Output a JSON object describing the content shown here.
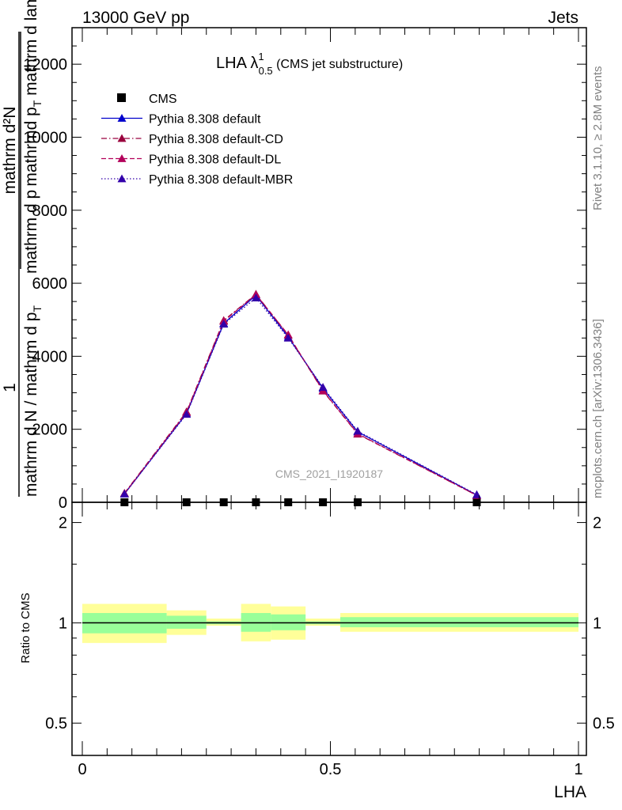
{
  "header": {
    "left": "13000 GeV pp",
    "right": "Jets"
  },
  "side_labels": {
    "rivet": "Rivet 3.1.10, ≥ 2.8M events",
    "mcplots": "mcplots.cern.ch [arXiv:1306.3436]"
  },
  "watermark": "CMS_2021_I1920187",
  "colors": {
    "cms": "#000000",
    "default": "#0000cc",
    "default_cd": "#99003d",
    "default_dl": "#b3005a",
    "default_mbr": "#3300aa",
    "band_yellow": "#ffff99",
    "band_green": "#99ff99"
  },
  "chart_data": [
    {
      "type": "line",
      "panel": "main",
      "title": {
        "prefix": "LHA λ",
        "sup": "1",
        "sub": "0.5",
        "suffix": " (CMS jet substructure)"
      },
      "ylabel": {
        "numerator": "mathrm d²N",
        "denominator": "mathrm d p mathrmd p",
        "subscript": "T",
        "denominator_tail": " mathrm d lambda",
        "outer_numerator": "1",
        "outer_denominator": "mathrm d N / mathrm d p",
        "outer_subscript": "T"
      },
      "xlim": [
        0,
        1
      ],
      "ylim": [
        0,
        13000
      ],
      "yticks": [
        0,
        2000,
        4000,
        6000,
        8000,
        10000,
        12000
      ],
      "ytick_labels": [
        "0",
        "2000",
        "4000",
        "6000",
        "8000",
        "10000",
        "12000"
      ],
      "grid": false,
      "legend_position": "top-left",
      "series": [
        {
          "name": "CMS",
          "marker": "square",
          "x": [
            0.085,
            0.21,
            0.285,
            0.35,
            0.415,
            0.485,
            0.555,
            0.795
          ],
          "y": [
            0,
            0,
            0,
            0,
            0,
            0,
            0,
            0
          ]
        },
        {
          "name": "Pythia 8.308 default",
          "marker": "triangle",
          "dash": "solid",
          "x": [
            0.085,
            0.21,
            0.285,
            0.35,
            0.415,
            0.485,
            0.555,
            0.795
          ],
          "y": [
            230,
            2430,
            4900,
            5670,
            4530,
            3120,
            1930,
            200
          ]
        },
        {
          "name": "Pythia 8.308 default-CD",
          "marker": "triangle",
          "dash": "dashdot",
          "x": [
            0.085,
            0.21,
            0.285,
            0.35,
            0.415,
            0.485,
            0.555,
            0.795
          ],
          "y": [
            250,
            2480,
            4980,
            5700,
            4580,
            3050,
            1870,
            190
          ]
        },
        {
          "name": "Pythia 8.308 default-DL",
          "marker": "triangle",
          "dash": "dashed",
          "x": [
            0.085,
            0.21,
            0.285,
            0.35,
            0.415,
            0.485,
            0.555,
            0.795
          ],
          "y": [
            240,
            2460,
            4960,
            5690,
            4590,
            3060,
            1880,
            190
          ]
        },
        {
          "name": "Pythia 8.308 default-MBR",
          "marker": "triangle",
          "dash": "dotted",
          "x": [
            0.085,
            0.21,
            0.285,
            0.35,
            0.415,
            0.485,
            0.555,
            0.795
          ],
          "y": [
            230,
            2410,
            4880,
            5600,
            4500,
            3150,
            1950,
            210
          ]
        }
      ]
    },
    {
      "type": "area",
      "panel": "ratio",
      "ylabel": "Ratio to CMS",
      "xlabel": "LHA",
      "xlim": [
        0,
        1
      ],
      "ylim": [
        0.4,
        2.3
      ],
      "ylog": true,
      "yticks": [
        0.5,
        1,
        2
      ],
      "ytick_labels": [
        "0.5",
        "1",
        "2"
      ],
      "xticks": [
        0,
        0.5,
        1
      ],
      "xtick_labels": [
        "0",
        "0.5",
        "1"
      ],
      "grid": false,
      "reference": 1,
      "bands": [
        {
          "x0": 0.0,
          "x1": 0.17,
          "yellow": [
            0.87,
            1.14
          ],
          "green": [
            0.93,
            1.07
          ]
        },
        {
          "x0": 0.17,
          "x1": 0.25,
          "yellow": [
            0.92,
            1.09
          ],
          "green": [
            0.96,
            1.05
          ]
        },
        {
          "x0": 0.25,
          "x1": 0.32,
          "yellow": [
            0.98,
            1.03
          ],
          "green": [
            0.99,
            1.01
          ]
        },
        {
          "x0": 0.32,
          "x1": 0.38,
          "yellow": [
            0.88,
            1.14
          ],
          "green": [
            0.94,
            1.07
          ]
        },
        {
          "x0": 0.38,
          "x1": 0.45,
          "yellow": [
            0.89,
            1.12
          ],
          "green": [
            0.95,
            1.06
          ]
        },
        {
          "x0": 0.45,
          "x1": 0.52,
          "yellow": [
            0.98,
            1.03
          ],
          "green": [
            0.99,
            1.01
          ]
        },
        {
          "x0": 0.52,
          "x1": 1.0,
          "yellow": [
            0.94,
            1.07
          ],
          "green": [
            0.97,
            1.04
          ]
        }
      ]
    }
  ]
}
